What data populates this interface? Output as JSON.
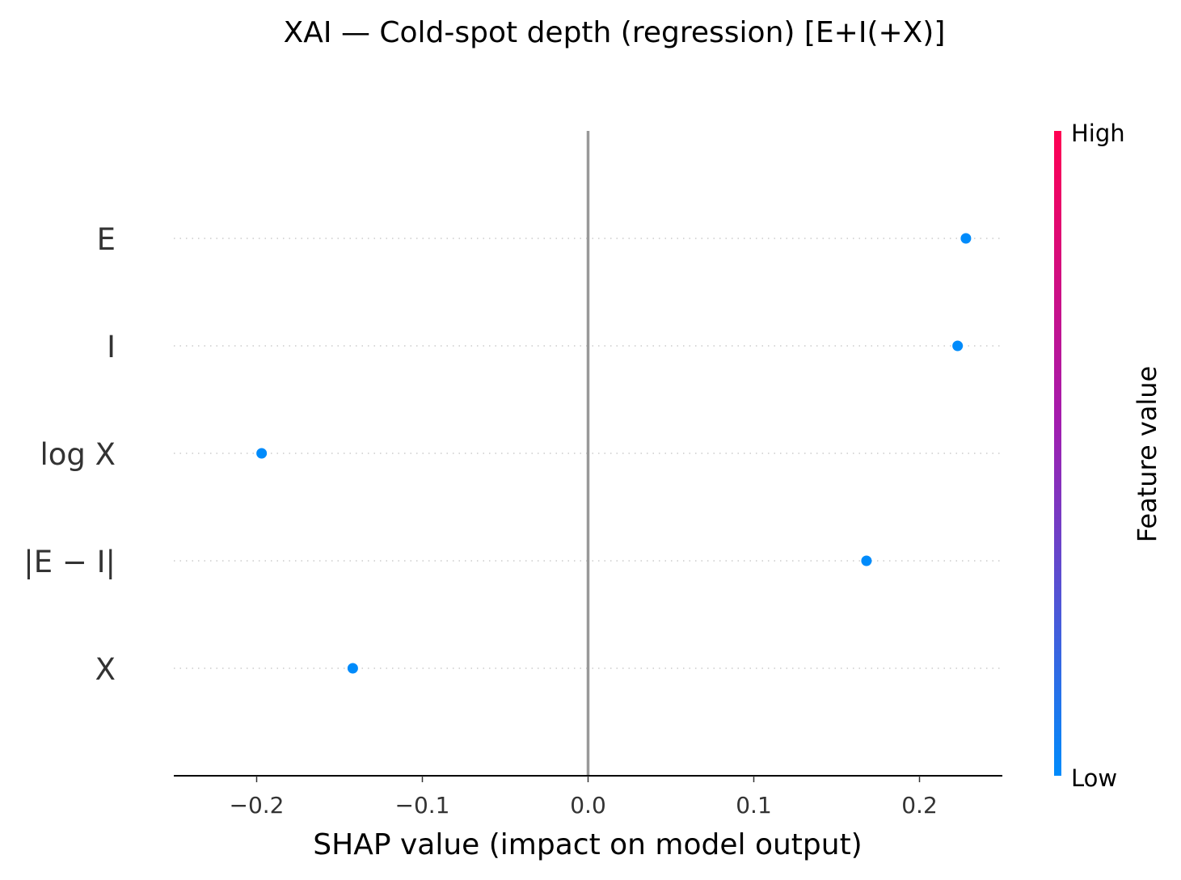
{
  "chart_data": {
    "type": "scatter",
    "title": "XAI — Cold-spot depth (regression) [E+I(+X)]",
    "xlabel": "SHAP value (impact on model output)",
    "ylabel": "",
    "xlim": [
      -0.25,
      0.25
    ],
    "xticks": [
      {
        "value": -0.2,
        "label": "−0.2"
      },
      {
        "value": -0.1,
        "label": "−0.1"
      },
      {
        "value": 0.0,
        "label": "0.0"
      },
      {
        "value": 0.1,
        "label": "0.1"
      },
      {
        "value": 0.2,
        "label": "0.2"
      }
    ],
    "features": [
      "E",
      "I",
      "log X",
      "|E − I|",
      "X"
    ],
    "points": [
      {
        "feature": "E",
        "shap": 0.228,
        "color": "#008bfb"
      },
      {
        "feature": "I",
        "shap": 0.223,
        "color": "#008bfb"
      },
      {
        "feature": "log X",
        "shap": -0.197,
        "color": "#008bfb"
      },
      {
        "feature": "|E − I|",
        "shap": 0.168,
        "color": "#008bfb"
      },
      {
        "feature": "X",
        "shap": -0.142,
        "color": "#008bfb"
      }
    ],
    "grid": false,
    "colorbar": {
      "title": "Feature value",
      "high_label": "High",
      "low_label": "Low",
      "high_color": "#ff0052",
      "mid_color": "#a31cae",
      "low_color": "#008bfb"
    }
  }
}
